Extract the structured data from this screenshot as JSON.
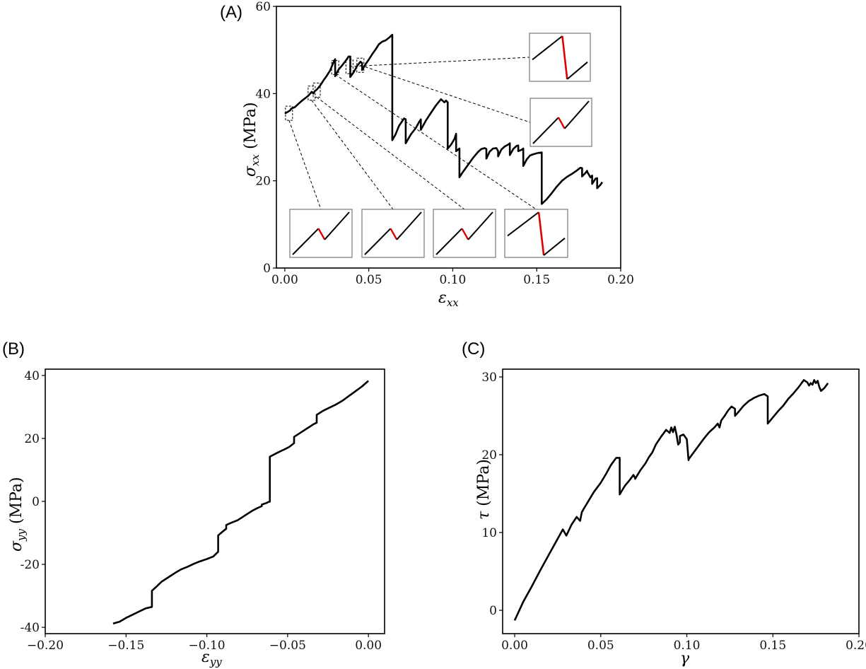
{
  "chart_data": [
    {
      "panel": "(A)",
      "type": "line",
      "xlabel": "ε_xx",
      "ylabel": "σ_xx (MPa)",
      "xlim": [
        -0.005,
        0.2
      ],
      "ylim": [
        0,
        60
      ],
      "xticks": [
        "0.00",
        "0.05",
        "0.10",
        "0.15",
        "0.20"
      ],
      "yticks": [
        "0",
        "20",
        "40",
        "60"
      ],
      "series": [
        {
          "x": [
            0.0,
            0.003,
            0.004,
            0.006,
            0.008,
            0.01,
            0.012,
            0.014,
            0.016,
            0.017,
            0.018,
            0.019,
            0.021,
            0.023,
            0.025,
            0.027,
            0.029,
            0.03,
            0.03,
            0.032,
            0.034,
            0.036,
            0.038,
            0.039,
            0.039,
            0.041,
            0.043,
            0.045,
            0.046,
            0.046,
            0.048,
            0.05,
            0.052,
            0.054,
            0.056,
            0.058,
            0.06,
            0.062,
            0.064,
            0.064,
            0.066,
            0.068,
            0.071,
            0.072,
            0.072,
            0.075,
            0.078,
            0.08,
            0.081,
            0.081,
            0.084,
            0.087,
            0.09,
            0.093,
            0.095,
            0.096,
            0.097,
            0.097,
            0.099,
            0.101,
            0.102,
            0.102,
            0.104,
            0.104,
            0.106,
            0.109,
            0.112,
            0.115,
            0.117,
            0.119,
            0.12,
            0.12,
            0.122,
            0.124,
            0.126,
            0.127,
            0.127,
            0.129,
            0.131,
            0.133,
            0.134,
            0.134,
            0.136,
            0.138,
            0.139,
            0.139,
            0.141,
            0.142,
            0.142,
            0.144,
            0.146,
            0.148,
            0.15,
            0.151,
            0.153,
            0.153,
            0.156,
            0.159,
            0.162,
            0.165,
            0.168,
            0.171,
            0.174,
            0.176,
            0.177,
            0.177,
            0.179,
            0.18,
            0.18,
            0.182,
            0.183,
            0.183,
            0.185,
            0.186,
            0.186,
            0.188,
            0.189
          ],
          "y": [
            35.4,
            36.1,
            36.6,
            36.9,
            37.6,
            38.3,
            38.9,
            39.5,
            40.4,
            40.0,
            40.6,
            40.9,
            41.8,
            43.0,
            44.1,
            45.3,
            47.2,
            47.9,
            44.0,
            45.5,
            46.4,
            47.4,
            48.5,
            48.5,
            43.8,
            44.9,
            46.3,
            47.3,
            47.0,
            45.4,
            46.7,
            47.8,
            49.0,
            50.1,
            51.3,
            51.9,
            52.2,
            52.8,
            53.5,
            29.3,
            30.7,
            32.6,
            34.3,
            34.1,
            28.6,
            30.6,
            32.1,
            33.5,
            34.1,
            31.7,
            33.8,
            35.6,
            37.3,
            38.7,
            38.0,
            38.4,
            38.0,
            27.4,
            28.3,
            29.6,
            30.8,
            26.8,
            27.4,
            20.8,
            22.0,
            23.6,
            25.2,
            26.6,
            27.3,
            27.5,
            27.3,
            25.1,
            26.7,
            27.4,
            27.5,
            26.8,
            25.6,
            27.2,
            27.9,
            28.3,
            28.6,
            25.9,
            27.3,
            28.0,
            28.1,
            26.8,
            27.1,
            27.4,
            23.4,
            24.9,
            25.8,
            26.1,
            26.3,
            26.4,
            26.5,
            14.7,
            15.8,
            17.2,
            18.7,
            20.0,
            20.9,
            21.6,
            22.4,
            23.0,
            22.9,
            21.0,
            21.8,
            22.3,
            22.1,
            20.8,
            21.2,
            19.3,
            20.5,
            20.6,
            18.3,
            19.1,
            19.7
          ]
        }
      ],
      "insets": 6
    },
    {
      "panel": "(B)",
      "type": "line",
      "xlabel": "ε_yy",
      "ylabel": "σ_yy (MPa)",
      "xlim": [
        -0.2,
        0.01
      ],
      "ylim": [
        -42,
        42
      ],
      "xticks": [
        "−0.20",
        "−0.15",
        "−0.10",
        "−0.05",
        "0.00"
      ],
      "yticks": [
        "-40",
        "-20",
        "0",
        "20",
        "40"
      ],
      "series": [
        {
          "x": [
            -0.158,
            -0.154,
            -0.15,
            -0.146,
            -0.142,
            -0.138,
            -0.134,
            -0.134,
            -0.131,
            -0.128,
            -0.125,
            -0.122,
            -0.119,
            -0.116,
            -0.112,
            -0.108,
            -0.104,
            -0.1,
            -0.096,
            -0.093,
            -0.093,
            -0.09,
            -0.088,
            -0.088,
            -0.085,
            -0.081,
            -0.078,
            -0.075,
            -0.072,
            -0.069,
            -0.066,
            -0.066,
            -0.063,
            -0.062,
            -0.061,
            -0.061,
            -0.058,
            -0.055,
            -0.052,
            -0.049,
            -0.046,
            -0.046,
            -0.043,
            -0.04,
            -0.037,
            -0.034,
            -0.032,
            -0.032,
            -0.028,
            -0.024,
            -0.02,
            -0.016,
            -0.012,
            -0.008,
            -0.004,
            0.0
          ],
          "y": [
            -38.8,
            -38.2,
            -37.0,
            -36.0,
            -35.0,
            -34.0,
            -33.5,
            -28.4,
            -27.0,
            -25.5,
            -24.5,
            -23.5,
            -22.5,
            -21.6,
            -20.8,
            -19.8,
            -19.0,
            -18.3,
            -17.5,
            -16.0,
            -10.8,
            -9.5,
            -8.7,
            -7.5,
            -6.8,
            -6.0,
            -5.0,
            -4.0,
            -3.0,
            -2.2,
            -1.5,
            -1.0,
            -0.5,
            -0.2,
            -0.1,
            14.2,
            15.0,
            15.8,
            16.5,
            17.3,
            18.5,
            20.5,
            21.5,
            22.5,
            23.5,
            24.5,
            25.0,
            27.5,
            28.8,
            29.8,
            30.8,
            32.0,
            33.5,
            35.0,
            36.5,
            38.3
          ]
        }
      ]
    },
    {
      "panel": "(C)",
      "type": "line",
      "xlabel": "γ",
      "ylabel": "τ (MPa)",
      "xlim": [
        -0.007,
        0.2
      ],
      "ylim": [
        -3,
        31
      ],
      "xticks": [
        "0.00",
        "0.05",
        "0.10",
        "0.15",
        "0.20"
      ],
      "yticks": [
        "0",
        "10",
        "20",
        "30"
      ],
      "series": [
        {
          "x": [
            0.0,
            0.005,
            0.01,
            0.015,
            0.02,
            0.025,
            0.028,
            0.03,
            0.033,
            0.036,
            0.038,
            0.039,
            0.04,
            0.043,
            0.046,
            0.05,
            0.053,
            0.056,
            0.059,
            0.061,
            0.061,
            0.064,
            0.067,
            0.069,
            0.07,
            0.07,
            0.073,
            0.076,
            0.078,
            0.08,
            0.082,
            0.085,
            0.088,
            0.09,
            0.091,
            0.092,
            0.093,
            0.094,
            0.095,
            0.096,
            0.096,
            0.098,
            0.1,
            0.101,
            0.101,
            0.104,
            0.107,
            0.11,
            0.113,
            0.116,
            0.118,
            0.119,
            0.12,
            0.122,
            0.124,
            0.126,
            0.128,
            0.128,
            0.13,
            0.133,
            0.136,
            0.139,
            0.142,
            0.145,
            0.147,
            0.147,
            0.15,
            0.153,
            0.156,
            0.159,
            0.162,
            0.165,
            0.168,
            0.17,
            0.171,
            0.172,
            0.173,
            0.174,
            0.175,
            0.176,
            0.177,
            0.178,
            0.179,
            0.18,
            0.182
          ],
          "y": [
            -1.3,
            1.1,
            3.1,
            5.2,
            7.2,
            9.2,
            10.4,
            9.6,
            11.0,
            12.0,
            11.5,
            12.6,
            13.0,
            14.1,
            15.2,
            16.4,
            17.5,
            18.7,
            19.6,
            19.6,
            14.9,
            16.0,
            16.8,
            17.4,
            17.0,
            16.9,
            18.0,
            18.9,
            19.7,
            20.3,
            21.3,
            22.3,
            23.2,
            22.8,
            23.5,
            22.9,
            23.6,
            22.6,
            21.3,
            21.6,
            22.4,
            22.6,
            22.0,
            19.3,
            19.4,
            20.3,
            21.2,
            22.1,
            22.9,
            23.5,
            24.0,
            23.5,
            24.4,
            25.0,
            25.7,
            26.2,
            25.9,
            25.0,
            25.5,
            26.3,
            26.9,
            27.3,
            27.6,
            27.8,
            27.5,
            24.0,
            24.8,
            25.6,
            26.3,
            27.2,
            27.9,
            28.7,
            29.6,
            29.3,
            28.9,
            29.2,
            29.0,
            29.6,
            29.2,
            29.5,
            28.7,
            28.2,
            28.4,
            28.6,
            29.2
          ]
        }
      ]
    }
  ]
}
